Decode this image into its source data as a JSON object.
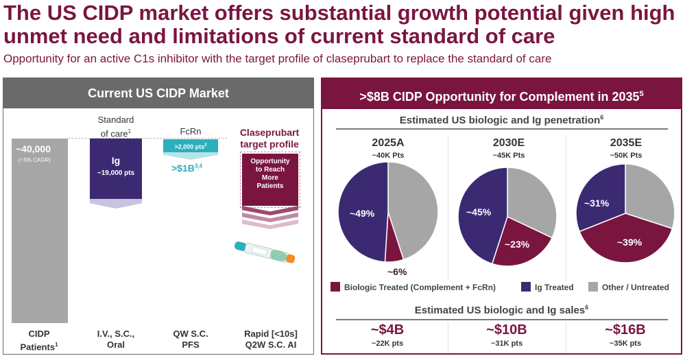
{
  "title": "The US CIDP market offers substantial growth potential given high unmet need and limitations of current standard of care",
  "subtitle": "Opportunity for an active C1s inhibitor with the target profile of claseprubart to replace the standard of care",
  "left": {
    "header": "Current US CIDP Market",
    "cidp_value": "~40,000",
    "cidp_cagr": "(~5% CAGR)",
    "soc_label_1": "Standard",
    "soc_label_2": "of care",
    "soc_sup": "1",
    "ig_title": "Ig",
    "ig_sub": "~19,000 pts",
    "fcrn_label": "FcRn",
    "fcrn_box": ">2,000 pts",
    "fcrn_box_sup": "2",
    "fcrn_value": ">$1B",
    "fcrn_value_sup": "3,4",
    "clase_label_1": "Claseprubart",
    "clase_label_2": "target profile",
    "clase_box": [
      "Opportunity",
      "to Reach",
      "More",
      "Patients"
    ],
    "categories": [
      {
        "line1": "CIDP",
        "line2": "Patients",
        "sup": "1"
      },
      {
        "line1": "I.V., S.C.,",
        "line2": "Oral",
        "sup": ""
      },
      {
        "line1": "QW S.C.",
        "line2": "PFS",
        "sup": ""
      },
      {
        "line1": "Rapid [<10s]",
        "line2": "Q2W S.C. AI",
        "sup": ""
      }
    ]
  },
  "right": {
    "header": ">$8B CIDP Opportunity for Complement in 2035",
    "header_sup": "5",
    "pen_title": "Estimated US biologic and Ig penetration",
    "pen_sup": "6",
    "sales_title": "Estimated US biologic and Ig sales",
    "sales_sup": "6",
    "colors": {
      "biologic": "#7a1540",
      "ig": "#3b2a72",
      "other": "#a6a6a6"
    },
    "pies": [
      {
        "year": "2025A",
        "pts": "~40K Pts",
        "biologic": 6,
        "ig": 49,
        "other": 45,
        "label_bio": "~6%",
        "label_ig": "~49%"
      },
      {
        "year": "2030E",
        "pts": "~45K Pts",
        "biologic": 23,
        "ig": 45,
        "other": 32,
        "label_bio": "~23%",
        "label_ig": "~45%"
      },
      {
        "year": "2035E",
        "pts": "~50K Pts",
        "biologic": 39,
        "ig": 31,
        "other": 30,
        "label_bio": "~39%",
        "label_ig": "~31%"
      }
    ],
    "legend": {
      "biologic": "Biologic Treated (Complement + FcRn)",
      "ig": "Ig Treated",
      "other": "Other / Untreated"
    },
    "sales": [
      {
        "value": "~$4B",
        "pts": "~22K pts"
      },
      {
        "value": "~$10B",
        "pts": "~31K pts"
      },
      {
        "value": "~$16B",
        "pts": "~35K pts"
      }
    ]
  }
}
